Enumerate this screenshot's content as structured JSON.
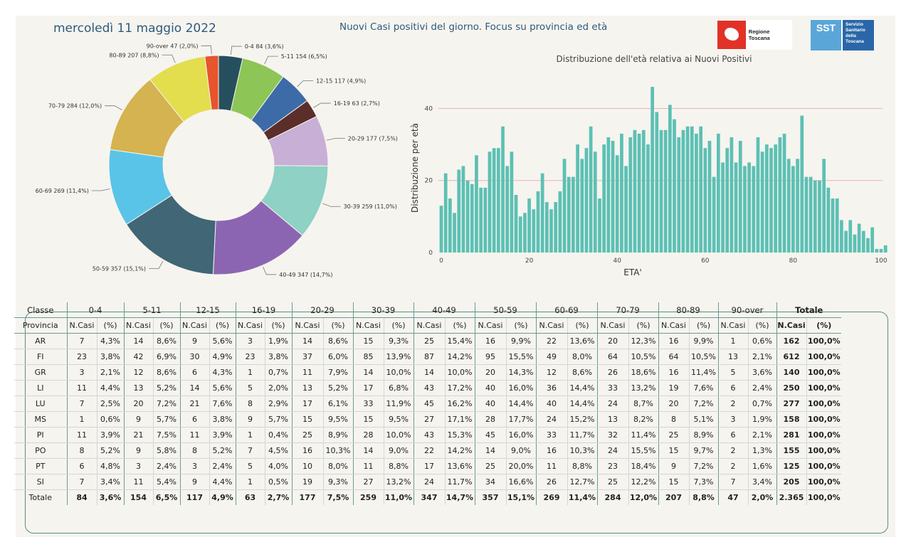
{
  "header": {
    "date": "mercoledì 11 maggio 2022",
    "page_title": "Nuovi Casi positivi del giorno. Focus su provincia ed età",
    "logo_regione": "Regione Toscana",
    "logo_sst_mark": "SST",
    "logo_sst_text": "Servizio Sanitario della Toscana"
  },
  "colors": {
    "bars": "#5dc0b4",
    "gridline": "#e8b4b4",
    "background": "#f6f4ef"
  },
  "chart_data": [
    {
      "type": "pie",
      "donut": true,
      "slices": [
        {
          "label": "0-4 84 (3,6%)",
          "value": 84,
          "color": "#264f5e"
        },
        {
          "label": "5-11 154 (6,5%)",
          "value": 154,
          "color": "#8dc556"
        },
        {
          "label": "12-15 117 (4,9%)",
          "value": 117,
          "color": "#3c6ba8"
        },
        {
          "label": "16-19 63 (2,7%)",
          "value": 63,
          "color": "#5b2e2a"
        },
        {
          "label": "20-29 177 (7,5%)",
          "value": 177,
          "color": "#c8afd6"
        },
        {
          "label": "30-39 259 (11,0%)",
          "value": 259,
          "color": "#8fd1c4"
        },
        {
          "label": "40-49 347 (14,7%)",
          "value": 347,
          "color": "#8c65b2"
        },
        {
          "label": "50-59 357 (15,1%)",
          "value": 357,
          "color": "#416675"
        },
        {
          "label": "60-69 269 (11,4%)",
          "value": 269,
          "color": "#5ac4e8"
        },
        {
          "label": "70-79 284 (12,0%)",
          "value": 284,
          "color": "#d4b350"
        },
        {
          "label": "80-89 207 (8,8%)",
          "value": 207,
          "color": "#e2de4e"
        },
        {
          "label": "90-over 47 (2,0%)",
          "value": 47,
          "color": "#e8542c"
        }
      ]
    },
    {
      "type": "bar",
      "title": "Distribuzione dell'età relativa ai Nuovi Positivi",
      "xlabel": "ETA'",
      "ylabel": "Distribuzione per età",
      "xlim": [
        0,
        100
      ],
      "ylim": [
        0,
        47
      ],
      "xticks": [
        "0",
        "20",
        "40",
        "60",
        "80",
        "100"
      ],
      "yticks": [
        "0",
        "20",
        "40"
      ],
      "ages": [
        0,
        101
      ],
      "values": [
        13,
        22,
        15,
        11,
        23,
        24,
        20,
        19,
        27,
        18,
        18,
        28,
        29,
        29,
        35,
        24,
        28,
        16,
        10,
        11,
        15,
        12,
        17,
        22,
        14,
        12,
        14,
        17,
        26,
        21,
        21,
        30,
        26,
        29,
        35,
        28,
        15,
        30,
        32,
        31,
        27,
        33,
        24,
        32,
        34,
        33,
        34,
        30,
        46,
        39,
        34,
        34,
        41,
        37,
        32,
        34,
        35,
        35,
        33,
        35,
        29,
        31,
        21,
        33,
        25,
        29,
        32,
        25,
        31,
        24,
        25,
        24,
        32,
        28,
        30,
        29,
        30,
        32,
        33,
        26,
        24,
        26,
        38,
        21,
        21,
        20,
        20,
        26,
        18,
        15,
        15,
        9,
        6,
        9,
        5,
        8,
        6,
        4,
        7,
        1,
        1,
        2
      ]
    }
  ],
  "table": {
    "col_class": "Classe",
    "col_prov": "Provincia",
    "groups": [
      "0-4",
      "5-11",
      "12-15",
      "16-19",
      "20-29",
      "30-39",
      "40-49",
      "50-59",
      "60-69",
      "70-79",
      "80-89",
      "90-over",
      "Totale"
    ],
    "sub_n": "N.Casi",
    "sub_p": "(%)",
    "rows": [
      {
        "prov": "AR",
        "cells": [
          "7",
          "4,3%",
          "14",
          "8,6%",
          "9",
          "5,6%",
          "3",
          "1,9%",
          "14",
          "8,6%",
          "15",
          "9,3%",
          "25",
          "15,4%",
          "16",
          "9,9%",
          "22",
          "13,6%",
          "20",
          "12,3%",
          "16",
          "9,9%",
          "1",
          "0,6%",
          "162",
          "100,0%"
        ]
      },
      {
        "prov": "FI",
        "cells": [
          "23",
          "3,8%",
          "42",
          "6,9%",
          "30",
          "4,9%",
          "23",
          "3,8%",
          "37",
          "6,0%",
          "85",
          "13,9%",
          "87",
          "14,2%",
          "95",
          "15,5%",
          "49",
          "8,0%",
          "64",
          "10,5%",
          "64",
          "10,5%",
          "13",
          "2,1%",
          "612",
          "100,0%"
        ]
      },
      {
        "prov": "GR",
        "cells": [
          "3",
          "2,1%",
          "12",
          "8,6%",
          "6",
          "4,3%",
          "1",
          "0,7%",
          "11",
          "7,9%",
          "14",
          "10,0%",
          "14",
          "10,0%",
          "20",
          "14,3%",
          "12",
          "8,6%",
          "26",
          "18,6%",
          "16",
          "11,4%",
          "5",
          "3,6%",
          "140",
          "100,0%"
        ]
      },
      {
        "prov": "LI",
        "cells": [
          "11",
          "4,4%",
          "13",
          "5,2%",
          "14",
          "5,6%",
          "5",
          "2,0%",
          "13",
          "5,2%",
          "17",
          "6,8%",
          "43",
          "17,2%",
          "40",
          "16,0%",
          "36",
          "14,4%",
          "33",
          "13,2%",
          "19",
          "7,6%",
          "6",
          "2,4%",
          "250",
          "100,0%"
        ]
      },
      {
        "prov": "LU",
        "cells": [
          "7",
          "2,5%",
          "20",
          "7,2%",
          "21",
          "7,6%",
          "8",
          "2,9%",
          "17",
          "6,1%",
          "33",
          "11,9%",
          "45",
          "16,2%",
          "40",
          "14,4%",
          "40",
          "14,4%",
          "24",
          "8,7%",
          "20",
          "7,2%",
          "2",
          "0,7%",
          "277",
          "100,0%"
        ]
      },
      {
        "prov": "MS",
        "cells": [
          "1",
          "0,6%",
          "9",
          "5,7%",
          "6",
          "3,8%",
          "9",
          "5,7%",
          "15",
          "9,5%",
          "15",
          "9,5%",
          "27",
          "17,1%",
          "28",
          "17,7%",
          "24",
          "15,2%",
          "13",
          "8,2%",
          "8",
          "5,1%",
          "3",
          "1,9%",
          "158",
          "100,0%"
        ]
      },
      {
        "prov": "PI",
        "cells": [
          "11",
          "3,9%",
          "21",
          "7,5%",
          "11",
          "3,9%",
          "1",
          "0,4%",
          "25",
          "8,9%",
          "28",
          "10,0%",
          "43",
          "15,3%",
          "45",
          "16,0%",
          "33",
          "11,7%",
          "32",
          "11,4%",
          "25",
          "8,9%",
          "6",
          "2,1%",
          "281",
          "100,0%"
        ]
      },
      {
        "prov": "PO",
        "cells": [
          "8",
          "5,2%",
          "9",
          "5,8%",
          "8",
          "5,2%",
          "7",
          "4,5%",
          "16",
          "10,3%",
          "14",
          "9,0%",
          "22",
          "14,2%",
          "14",
          "9,0%",
          "16",
          "10,3%",
          "24",
          "15,5%",
          "15",
          "9,7%",
          "2",
          "1,3%",
          "155",
          "100,0%"
        ]
      },
      {
        "prov": "PT",
        "cells": [
          "6",
          "4,8%",
          "3",
          "2,4%",
          "3",
          "2,4%",
          "5",
          "4,0%",
          "10",
          "8,0%",
          "11",
          "8,8%",
          "17",
          "13,6%",
          "25",
          "20,0%",
          "11",
          "8,8%",
          "23",
          "18,4%",
          "9",
          "7,2%",
          "2",
          "1,6%",
          "125",
          "100,0%"
        ]
      },
      {
        "prov": "SI",
        "cells": [
          "7",
          "3,4%",
          "11",
          "5,4%",
          "9",
          "4,4%",
          "1",
          "0,5%",
          "19",
          "9,3%",
          "27",
          "13,2%",
          "24",
          "11,7%",
          "34",
          "16,6%",
          "26",
          "12,7%",
          "25",
          "12,2%",
          "15",
          "7,3%",
          "7",
          "3,4%",
          "205",
          "100,0%"
        ]
      }
    ],
    "total": {
      "prov": "Totale",
      "cells": [
        "84",
        "3,6%",
        "154",
        "6,5%",
        "117",
        "4,9%",
        "63",
        "2,7%",
        "177",
        "7,5%",
        "259",
        "11,0%",
        "347",
        "14,7%",
        "357",
        "15,1%",
        "269",
        "11,4%",
        "284",
        "12,0%",
        "207",
        "8,8%",
        "47",
        "2,0%",
        "2.365",
        "100,0%"
      ]
    }
  }
}
